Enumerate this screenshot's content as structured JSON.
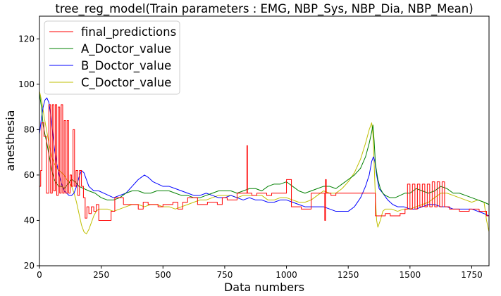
{
  "chart_data": {
    "type": "line",
    "title": "tree_reg_model(Train parameters : EMG, NBP_Sys, NBP_Dia, NBP_Mean)",
    "xlabel": "Data numbers",
    "ylabel": "anesthesia",
    "xlim": [
      0,
      1820
    ],
    "ylim": [
      20,
      130
    ],
    "xticks": [
      0,
      250,
      500,
      750,
      1000,
      1250,
      1500,
      1750
    ],
    "yticks": [
      20,
      40,
      60,
      80,
      100,
      120
    ],
    "grid": false,
    "legend_position": "top-left",
    "series": [
      {
        "name": "final_predictions",
        "color": "#ff0000",
        "style": "step",
        "x": [
          0,
          5,
          10,
          18,
          28,
          38,
          45,
          52,
          58,
          64,
          70,
          76,
          82,
          88,
          94,
          100,
          106,
          112,
          118,
          124,
          130,
          136,
          142,
          148,
          155,
          162,
          170,
          178,
          185,
          192,
          200,
          210,
          220,
          230,
          240,
          250,
          260,
          275,
          290,
          305,
          320,
          340,
          360,
          380,
          400,
          420,
          440,
          460,
          480,
          500,
          520,
          540,
          560,
          580,
          600,
          620,
          640,
          660,
          680,
          700,
          720,
          740,
          760,
          780,
          800,
          820,
          840,
          842,
          844,
          860,
          880,
          900,
          920,
          940,
          960,
          980,
          1000,
          1020,
          1040,
          1060,
          1080,
          1100,
          1120,
          1140,
          1155,
          1158,
          1161,
          1180,
          1200,
          1220,
          1240,
          1260,
          1280,
          1300,
          1320,
          1340,
          1350,
          1360,
          1380,
          1400,
          1420,
          1440,
          1460,
          1480,
          1490,
          1500,
          1510,
          1520,
          1530,
          1540,
          1550,
          1560,
          1570,
          1580,
          1590,
          1600,
          1610,
          1620,
          1630,
          1640,
          1660,
          1680,
          1700,
          1720,
          1740,
          1760,
          1780,
          1800,
          1810,
          1820
        ],
        "y": [
          55,
          62,
          83,
          77,
          52,
          91,
          52,
          91,
          53,
          91,
          51,
          90,
          52,
          91,
          52,
          84,
          52,
          84,
          52,
          60,
          55,
          80,
          55,
          62,
          51,
          62,
          55,
          50,
          41,
          46,
          43,
          46,
          44,
          47,
          40,
          40,
          40,
          40,
          44,
          50,
          50,
          47,
          47,
          47,
          45,
          48,
          47,
          47,
          46,
          47,
          47,
          48,
          45,
          48,
          50,
          50,
          47,
          47,
          48,
          48,
          47,
          50,
          49,
          49,
          52,
          52,
          73,
          52,
          52,
          51,
          52,
          52,
          51,
          52,
          52,
          52,
          58,
          46,
          46,
          45,
          45,
          52,
          52,
          52,
          40,
          58,
          52,
          51,
          52,
          52,
          52,
          52,
          52,
          52,
          52,
          52,
          52,
          42,
          42,
          43,
          42,
          42,
          43,
          45,
          56,
          45,
          56,
          45,
          56,
          46,
          56,
          46,
          56,
          46,
          57,
          46,
          57,
          46,
          57,
          46,
          45,
          45,
          44,
          44,
          45,
          45,
          44,
          44,
          42,
          47
        ]
      },
      {
        "name": "A_Doctor_value",
        "color": "#008000",
        "x": [
          0,
          8,
          15,
          22,
          30,
          40,
          50,
          60,
          70,
          80,
          90,
          100,
          115,
          130,
          145,
          160,
          180,
          200,
          225,
          250,
          275,
          300,
          325,
          350,
          375,
          400,
          425,
          450,
          475,
          500,
          525,
          550,
          575,
          600,
          625,
          650,
          675,
          700,
          725,
          750,
          775,
          800,
          825,
          850,
          875,
          900,
          925,
          950,
          975,
          1000,
          1025,
          1050,
          1075,
          1100,
          1125,
          1150,
          1175,
          1200,
          1225,
          1250,
          1275,
          1300,
          1320,
          1335,
          1345,
          1350,
          1355,
          1360,
          1370,
          1380,
          1390,
          1400,
          1420,
          1440,
          1460,
          1480,
          1500,
          1525,
          1550,
          1575,
          1600,
          1625,
          1650,
          1675,
          1700,
          1725,
          1750,
          1775,
          1800,
          1820
        ],
        "y": [
          96,
          90,
          82,
          78,
          74,
          68,
          62,
          58,
          56,
          55,
          55,
          54,
          56,
          58,
          57,
          55,
          54,
          53,
          52,
          50,
          49,
          49,
          50,
          52,
          53,
          53,
          52,
          52,
          53,
          53,
          53,
          52,
          51,
          51,
          50,
          50,
          51,
          52,
          53,
          53,
          53,
          52,
          53,
          54,
          54,
          53,
          55,
          56,
          56,
          57,
          55,
          53,
          52,
          53,
          54,
          55,
          55,
          54,
          56,
          58,
          60,
          63,
          68,
          74,
          79,
          82,
          75,
          65,
          58,
          54,
          52,
          51,
          50,
          50,
          51,
          52,
          52,
          54,
          53,
          52,
          53,
          55,
          54,
          52,
          52,
          51,
          50,
          49,
          48,
          47
        ]
      },
      {
        "name": "B_Doctor_value",
        "color": "#0000ff",
        "x": [
          0,
          8,
          15,
          22,
          30,
          38,
          45,
          52,
          60,
          70,
          80,
          90,
          100,
          110,
          120,
          130,
          140,
          150,
          160,
          170,
          180,
          190,
          200,
          220,
          240,
          260,
          280,
          300,
          325,
          350,
          375,
          400,
          425,
          440,
          460,
          480,
          500,
          525,
          550,
          575,
          600,
          625,
          650,
          675,
          700,
          725,
          750,
          775,
          800,
          825,
          850,
          875,
          900,
          925,
          950,
          975,
          1000,
          1025,
          1050,
          1075,
          1100,
          1125,
          1150,
          1175,
          1200,
          1225,
          1250,
          1275,
          1300,
          1320,
          1335,
          1345,
          1352,
          1358,
          1365,
          1375,
          1390,
          1410,
          1430,
          1450,
          1475,
          1500,
          1525,
          1550,
          1575,
          1600,
          1625,
          1650,
          1675,
          1700,
          1725,
          1750,
          1775,
          1800,
          1820
        ],
        "y": [
          78,
          85,
          90,
          93,
          94,
          92,
          87,
          80,
          72,
          65,
          60,
          56,
          53,
          52,
          51,
          51,
          52,
          55,
          59,
          62,
          61,
          58,
          55,
          53,
          53,
          52,
          51,
          50,
          51,
          52,
          55,
          58,
          60,
          59,
          57,
          56,
          55,
          55,
          54,
          53,
          52,
          51,
          51,
          52,
          51,
          50,
          50,
          51,
          50,
          49,
          50,
          49,
          49,
          48,
          48,
          49,
          49,
          48,
          47,
          46,
          46,
          46,
          46,
          45,
          44,
          44,
          44,
          46,
          50,
          55,
          60,
          66,
          68,
          66,
          60,
          54,
          52,
          49,
          47,
          46,
          46,
          45,
          45,
          46,
          47,
          47,
          46,
          46,
          45,
          45,
          45,
          45,
          44,
          43,
          42
        ]
      },
      {
        "name": "C_Doctor_value",
        "color": "#bfbf00",
        "x": [
          0,
          10,
          20,
          30,
          40,
          50,
          60,
          70,
          80,
          90,
          100,
          110,
          120,
          130,
          140,
          150,
          160,
          170,
          180,
          190,
          200,
          210,
          220,
          230,
          240,
          250,
          275,
          300,
          325,
          350,
          375,
          400,
          425,
          450,
          475,
          500,
          525,
          550,
          575,
          600,
          625,
          650,
          675,
          700,
          725,
          750,
          775,
          800,
          825,
          850,
          875,
          900,
          925,
          950,
          975,
          1000,
          1025,
          1050,
          1075,
          1100,
          1125,
          1150,
          1175,
          1200,
          1225,
          1250,
          1275,
          1300,
          1320,
          1335,
          1345,
          1350,
          1355,
          1360,
          1365,
          1370,
          1380,
          1390,
          1400,
          1425,
          1450,
          1475,
          1500,
          1525,
          1550,
          1575,
          1600,
          1625,
          1650,
          1675,
          1700,
          1725,
          1750,
          1775,
          1800,
          1810,
          1820
        ],
        "y": [
          97,
          92,
          85,
          79,
          73,
          68,
          65,
          63,
          62,
          61,
          60,
          58,
          57,
          55,
          52,
          48,
          43,
          38,
          35,
          34,
          36,
          39,
          42,
          44,
          45,
          45,
          45,
          44,
          45,
          46,
          47,
          47,
          46,
          47,
          47,
          46,
          46,
          45,
          46,
          47,
          48,
          49,
          49,
          50,
          51,
          51,
          51,
          50,
          51,
          51,
          51,
          51,
          49,
          49,
          50,
          50,
          49,
          48,
          48,
          49,
          51,
          53,
          52,
          52,
          54,
          57,
          61,
          67,
          74,
          80,
          83,
          78,
          65,
          50,
          40,
          37,
          40,
          44,
          45,
          45,
          44,
          45,
          45,
          46,
          47,
          48,
          50,
          52,
          52,
          51,
          50,
          49,
          48,
          49,
          48,
          40,
          35
        ]
      }
    ]
  }
}
